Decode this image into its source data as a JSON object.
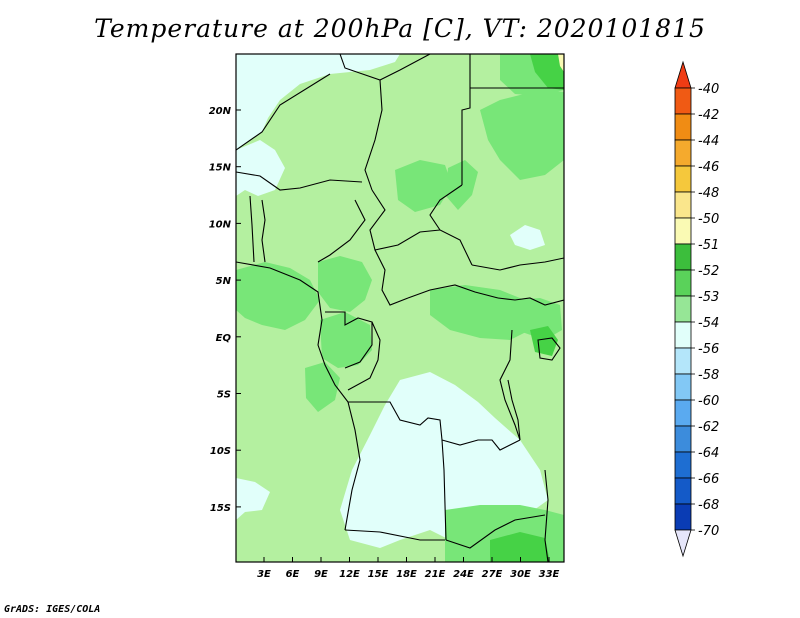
{
  "title": "Temperature at 200hPa [C], VT: 2020101815",
  "credit": "GrADS: IGES/COLA",
  "map": {
    "lon_labels": [
      "3E",
      "6E",
      "9E",
      "12E",
      "15E",
      "18E",
      "21E",
      "24E",
      "27E",
      "30E",
      "33E"
    ],
    "lat_labels": [
      "20N",
      "15N",
      "10N",
      "5N",
      "EQ",
      "5S",
      "10S",
      "15S"
    ]
  },
  "colorbar": {
    "labels": [
      "-40",
      "-42",
      "-44",
      "-46",
      "-48",
      "-50",
      "-51",
      "-52",
      "-53",
      "-54",
      "-56",
      "-58",
      "-60",
      "-62",
      "-64",
      "-66",
      "-68",
      "-70"
    ],
    "colors": [
      "#f03c14",
      "#f05a14",
      "#f08c14",
      "#f5aa2d",
      "#f5c83c",
      "#fae68c",
      "#fafab4",
      "#3cbe3c",
      "#5ad25a",
      "#96e696",
      "#e1fffa",
      "#b4e6fa",
      "#82c8f5",
      "#5aaaf0",
      "#3c8cdc",
      "#1e6ed2",
      "#145ac8",
      "#0a3cb4",
      "#05238c"
    ]
  },
  "fields": {
    "light_green": "#b4f0a0",
    "mid_green": "#96e696",
    "green": "#78e678",
    "dark_green": "#46d246",
    "pale_cyan": "#e1fffa"
  }
}
